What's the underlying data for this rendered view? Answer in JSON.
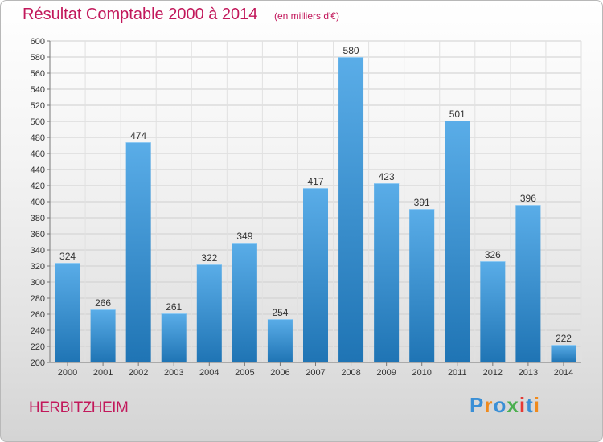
{
  "header": {
    "title": "Résultat Comptable 2000 à 2014",
    "subtitle": "(en milliers d'€)"
  },
  "footer": {
    "place": "HERBITZHEIM",
    "logo_text": "Proxiti",
    "logo_colors": [
      "#3a8fd6",
      "#f08a1c",
      "#3a8fd6",
      "#4caf50",
      "#e53935",
      "#3a8fd6",
      "#f08a1c"
    ]
  },
  "colors": {
    "accent": "#c2185b",
    "bar_light": "#5aade8",
    "bar_dark": "#1f74b4"
  },
  "chart_data": {
    "type": "bar",
    "categories": [
      "2000",
      "2001",
      "2002",
      "2003",
      "2004",
      "2005",
      "2006",
      "2007",
      "2008",
      "2009",
      "2010",
      "2011",
      "2012",
      "2013",
      "2014"
    ],
    "values": [
      324,
      266,
      474,
      261,
      322,
      349,
      254,
      417,
      580,
      423,
      391,
      501,
      326,
      396,
      222
    ],
    "yticks": [
      200,
      220,
      240,
      260,
      280,
      300,
      320,
      340,
      360,
      380,
      400,
      420,
      440,
      460,
      480,
      500,
      520,
      540,
      560,
      580,
      600
    ],
    "ylim": [
      200,
      600
    ],
    "grid": true
  }
}
